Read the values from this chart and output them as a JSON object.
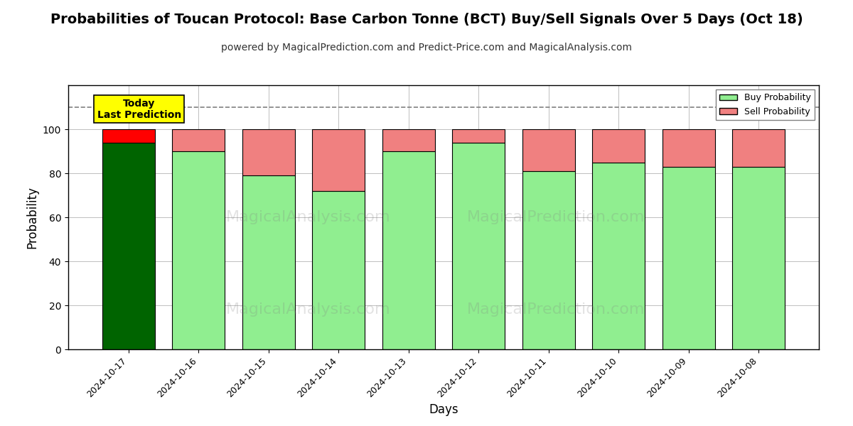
{
  "title": "Probabilities of Toucan Protocol: Base Carbon Tonne (BCT) Buy/Sell Signals Over 5 Days (Oct 18)",
  "subtitle": "powered by MagicalPrediction.com and Predict-Price.com and MagicalAnalysis.com",
  "xlabel": "Days",
  "ylabel": "Probability",
  "dates": [
    "2024-10-17",
    "2024-10-16",
    "2024-10-15",
    "2024-10-14",
    "2024-10-13",
    "2024-10-12",
    "2024-10-11",
    "2024-10-10",
    "2024-10-09",
    "2024-10-08"
  ],
  "buy_values": [
    94,
    90,
    79,
    72,
    90,
    94,
    81,
    85,
    83,
    83
  ],
  "sell_values": [
    6,
    10,
    21,
    28,
    10,
    6,
    19,
    15,
    17,
    17
  ],
  "today_bar_buy_color": "#006400",
  "today_bar_sell_color": "#FF0000",
  "normal_bar_buy_color": "#90EE90",
  "normal_bar_sell_color": "#F08080",
  "bar_edge_color": "#000000",
  "annotation_bg_color": "#FFFF00",
  "annotation_text": "Today\nLast Prediction",
  "legend_buy_label": "Buy Probability",
  "legend_sell_label": "Sell Probability",
  "ylim": [
    0,
    120
  ],
  "yticks": [
    0,
    20,
    40,
    60,
    80,
    100
  ],
  "dashed_line_y": 110,
  "watermark_left": "MagicalAnalysis.com",
  "watermark_right": "MagicalPrediction.com",
  "fig_width": 12,
  "fig_height": 6,
  "title_fontsize": 14,
  "subtitle_fontsize": 10,
  "axis_label_fontsize": 12
}
